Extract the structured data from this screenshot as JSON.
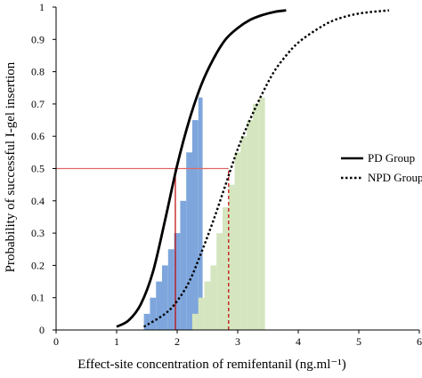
{
  "chart_data": {
    "type": "line",
    "xlabel": "Effect-site concentration of remifentanil (ng.ml⁻¹)",
    "ylabel": "Probability of successful I-gel insertion",
    "xlim": [
      0,
      6
    ],
    "ylim": [
      0,
      1
    ],
    "x_ticks": [
      "0",
      "1",
      "2",
      "3",
      "4",
      "5",
      "6"
    ],
    "y_ticks": [
      "0",
      "0.1",
      "0.2",
      "0.3",
      "0.4",
      "0.5",
      "0.6",
      "0.7",
      "0.8",
      "0.9",
      "1"
    ],
    "grid": false,
    "legend_position": "right",
    "series": [
      {
        "name": "PD Group",
        "style": "solid",
        "color": "#000000",
        "x": [
          1.0,
          1.2,
          1.4,
          1.6,
          1.8,
          2.0,
          2.2,
          2.4,
          2.6,
          2.8,
          3.0,
          3.2,
          3.4,
          3.6,
          3.8
        ],
        "y": [
          0.01,
          0.03,
          0.08,
          0.18,
          0.34,
          0.51,
          0.65,
          0.76,
          0.84,
          0.9,
          0.935,
          0.96,
          0.975,
          0.985,
          0.99
        ]
      },
      {
        "name": "NPD Group",
        "style": "dotted",
        "color": "#000000",
        "x": [
          1.45,
          1.8,
          2.0,
          2.2,
          2.4,
          2.6,
          2.8,
          3.0,
          3.2,
          3.4,
          3.6,
          3.8,
          4.0,
          4.3,
          4.6,
          5.0,
          5.5
        ],
        "y": [
          0.01,
          0.05,
          0.09,
          0.15,
          0.24,
          0.34,
          0.45,
          0.56,
          0.65,
          0.73,
          0.8,
          0.85,
          0.89,
          0.93,
          0.96,
          0.98,
          0.99
        ]
      }
    ],
    "bars": [
      {
        "group": "PD Group",
        "color": "#7ea6dc",
        "bins": [
          {
            "x0": 1.45,
            "x1": 1.55,
            "y": 0.05
          },
          {
            "x0": 1.55,
            "x1": 1.65,
            "y": 0.1
          },
          {
            "x0": 1.65,
            "x1": 1.75,
            "y": 0.15
          },
          {
            "x0": 1.75,
            "x1": 1.85,
            "y": 0.2
          },
          {
            "x0": 1.85,
            "x1": 1.95,
            "y": 0.25
          },
          {
            "x0": 1.95,
            "x1": 2.05,
            "y": 0.3
          },
          {
            "x0": 2.05,
            "x1": 2.15,
            "y": 0.4
          },
          {
            "x0": 2.15,
            "x1": 2.25,
            "y": 0.55
          },
          {
            "x0": 2.25,
            "x1": 2.35,
            "y": 0.65
          },
          {
            "x0": 2.35,
            "x1": 2.42,
            "y": 0.72
          }
        ]
      },
      {
        "group": "NPD Group",
        "color": "#d5e5bf",
        "bins": [
          {
            "x0": 2.25,
            "x1": 2.35,
            "y": 0.05
          },
          {
            "x0": 2.35,
            "x1": 2.45,
            "y": 0.1
          },
          {
            "x0": 2.45,
            "x1": 2.55,
            "y": 0.15
          },
          {
            "x0": 2.55,
            "x1": 2.65,
            "y": 0.2
          },
          {
            "x0": 2.65,
            "x1": 2.75,
            "y": 0.3
          },
          {
            "x0": 2.75,
            "x1": 2.85,
            "y": 0.38
          },
          {
            "x0": 2.85,
            "x1": 2.95,
            "y": 0.45
          },
          {
            "x0": 2.95,
            "x1": 3.05,
            "y": 0.55
          },
          {
            "x0": 3.05,
            "x1": 3.15,
            "y": 0.6
          },
          {
            "x0": 3.15,
            "x1": 3.25,
            "y": 0.65
          },
          {
            "x0": 3.25,
            "x1": 3.35,
            "y": 0.7
          },
          {
            "x0": 3.35,
            "x1": 3.45,
            "y": 0.72
          }
        ]
      }
    ],
    "reference_lines": [
      {
        "type": "horizontal",
        "y": 0.5,
        "x_start": 0,
        "x_end": 2.85,
        "color": "#e06666",
        "style": "solid"
      },
      {
        "type": "vertical",
        "x": 1.97,
        "y_start": 0,
        "y_end": 0.5,
        "color": "#c00000",
        "style": "solid"
      },
      {
        "type": "vertical",
        "x": 2.85,
        "y_start": 0,
        "y_end": 0.5,
        "color": "#c00000",
        "style": "dashed"
      }
    ]
  }
}
